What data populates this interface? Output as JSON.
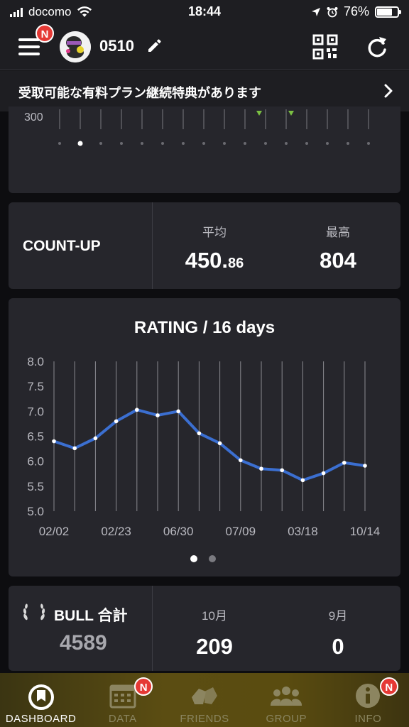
{
  "status_bar": {
    "carrier": "docomo",
    "time": "18:44",
    "battery": "76%",
    "battery_level": 0.76
  },
  "header": {
    "menu_badge": "N",
    "username": "0510"
  },
  "banner": {
    "text": "受取可能な有料プラン継続特典があります"
  },
  "top_card": {
    "axis_label": "300"
  },
  "count_up": {
    "title": "COUNT-UP",
    "avg_label": "平均",
    "avg_value_int": "450.",
    "avg_value_dec": "86",
    "max_label": "最高",
    "max_value": "804"
  },
  "rating": {
    "title": "RATING / 16 days",
    "pager_pages": 2,
    "pager_active": 0
  },
  "chart_data": {
    "type": "line",
    "title": "RATING / 16 days",
    "y_ticks": [
      "8.0",
      "7.5",
      "7.0",
      "6.5",
      "6.0",
      "5.5",
      "5.0"
    ],
    "ylim": [
      5.0,
      8.0
    ],
    "x_tick_labels": [
      "02/02",
      "02/23",
      "06/30",
      "07/09",
      "03/18",
      "10/14"
    ],
    "x_tick_indices": [
      0,
      3,
      6,
      9,
      12,
      15
    ],
    "values": [
      6.4,
      6.26,
      6.46,
      6.8,
      7.03,
      6.92,
      7.0,
      6.56,
      6.36,
      6.02,
      5.85,
      5.82,
      5.62,
      5.76,
      5.97,
      5.91
    ],
    "line_color": "#3b6fd1",
    "grid": "vertical"
  },
  "bull": {
    "title": "BULL 合計",
    "total": "4589",
    "month1_label": "10月",
    "month1_value": "209",
    "month2_label": "9月",
    "month2_value": "0"
  },
  "nav": [
    {
      "label": "DASHBOARD",
      "icon": "dashboard-icon",
      "active": true,
      "badge": ""
    },
    {
      "label": "DATA",
      "icon": "calendar-icon",
      "active": false,
      "badge": "N"
    },
    {
      "label": "FRIENDS",
      "icon": "friends-icon",
      "active": false,
      "badge": ""
    },
    {
      "label": "GROUP",
      "icon": "group-icon",
      "active": false,
      "badge": ""
    },
    {
      "label": "INFO",
      "icon": "info-icon",
      "active": false,
      "badge": "N"
    }
  ]
}
